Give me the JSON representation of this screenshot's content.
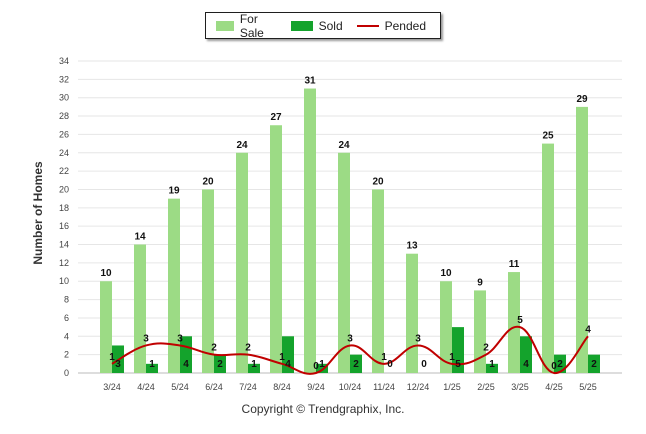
{
  "legend": {
    "for_sale": "For Sale",
    "sold": "Sold",
    "pended": "Pended"
  },
  "copyright": "Copyright © Trendgraphix, Inc.",
  "colors": {
    "for_sale": "#9cdb85",
    "sold": "#14a32c",
    "pended": "#c00000",
    "grid": "#e6e6e6",
    "text": "#333333"
  },
  "chart_data": {
    "type": "bar",
    "title": "",
    "xlabel": "",
    "ylabel": "Number of Homes",
    "ylim": [
      0,
      34
    ],
    "yticks": [
      0,
      2,
      4,
      6,
      8,
      10,
      12,
      14,
      16,
      18,
      20,
      22,
      24,
      26,
      28,
      30,
      32,
      34
    ],
    "categories": [
      "3/24",
      "4/24",
      "5/24",
      "6/24",
      "7/24",
      "8/24",
      "9/24",
      "10/24",
      "11/24",
      "12/24",
      "1/25",
      "2/25",
      "3/25",
      "4/25",
      "5/25"
    ],
    "series": [
      {
        "name": "For Sale",
        "kind": "bar",
        "values": [
          10,
          14,
          19,
          20,
          24,
          27,
          31,
          24,
          20,
          13,
          10,
          9,
          11,
          25,
          29
        ]
      },
      {
        "name": "Sold",
        "kind": "bar",
        "values": [
          3,
          1,
          4,
          2,
          1,
          4,
          1,
          2,
          0,
          0,
          5,
          1,
          4,
          2,
          2
        ]
      },
      {
        "name": "Pended",
        "kind": "line",
        "values": [
          1,
          3,
          3,
          2,
          2,
          1,
          0,
          3,
          1,
          3,
          1,
          2,
          5,
          0,
          4
        ]
      }
    ],
    "grid": true,
    "legend_position": "top-center"
  }
}
